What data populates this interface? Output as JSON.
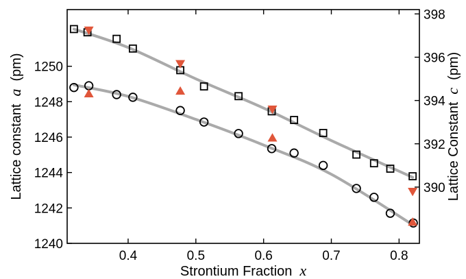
{
  "chart_data": {
    "type": "scatter",
    "title": "",
    "xlabel": "Strontium Fraction",
    "xlabel_var": "x",
    "ylabel_left": "Lattice constant",
    "ylabel_left_var": "a",
    "ylabel_left_unit": "(pm)",
    "ylabel_right": "Lattice Constant",
    "ylabel_right_var": "c",
    "ylabel_right_unit": "(pm)",
    "xlim": [
      0.31,
      0.83
    ],
    "ylim_left": [
      1240,
      1253.2
    ],
    "ylim_right": [
      387.4,
      398.2
    ],
    "xticks": [
      {
        "value": 0.4,
        "label": "0.4"
      },
      {
        "value": 0.5,
        "label": "0.5"
      },
      {
        "value": 0.6,
        "label": "0.6"
      },
      {
        "value": 0.7,
        "label": "0.7"
      },
      {
        "value": 0.8,
        "label": "0.8"
      }
    ],
    "yticks_left": [
      {
        "value": 1240,
        "label": "1240"
      },
      {
        "value": 1242,
        "label": "1242"
      },
      {
        "value": 1244,
        "label": "1244"
      },
      {
        "value": 1246,
        "label": "1246"
      },
      {
        "value": 1248,
        "label": "1248"
      },
      {
        "value": 1250,
        "label": "1250"
      }
    ],
    "yticks_right": [
      {
        "value": 390,
        "label": "390"
      },
      {
        "value": 392,
        "label": "392"
      },
      {
        "value": 394,
        "label": "394"
      },
      {
        "value": 396,
        "label": "396"
      },
      {
        "value": 398,
        "label": "398"
      }
    ],
    "grid": false,
    "colors": {
      "fit_line": "#aaaaaa",
      "triangle": "#e0563a",
      "marker": "#000000"
    },
    "series": [
      {
        "marker": "square-open",
        "axis": "right",
        "x": [
          0.32,
          0.34,
          0.383,
          0.407,
          0.477,
          0.512,
          0.563,
          0.612,
          0.645,
          0.688,
          0.737,
          0.763,
          0.787,
          0.82
        ],
        "y": [
          397.3,
          397.15,
          396.85,
          396.4,
          395.4,
          394.65,
          394.2,
          393.5,
          393.1,
          392.5,
          391.5,
          391.1,
          390.85,
          390.5
        ]
      },
      {
        "marker": "circle-open",
        "axis": "left",
        "x": [
          0.32,
          0.342,
          0.383,
          0.407,
          0.477,
          0.512,
          0.563,
          0.612,
          0.645,
          0.688,
          0.737,
          0.763,
          0.787,
          0.821
        ],
        "y": [
          1248.8,
          1248.9,
          1248.4,
          1248.25,
          1247.5,
          1246.85,
          1246.2,
          1245.35,
          1245.1,
          1244.4,
          1243.1,
          1242.6,
          1241.7,
          1241.15
        ]
      },
      {
        "marker": "triangle-down",
        "axis": "right",
        "x": [
          0.342,
          0.477,
          0.613,
          0.82
        ],
        "y": [
          397.25,
          395.7,
          393.6,
          389.8
        ]
      },
      {
        "marker": "triangle-up",
        "axis": "left",
        "x": [
          0.342,
          0.477,
          0.613,
          0.82
        ],
        "y": [
          1248.45,
          1248.6,
          1245.95,
          1241.2
        ]
      }
    ],
    "fit_lines": [
      {
        "axis": "right",
        "x": [
          0.32,
          0.4,
          0.5,
          0.6,
          0.7,
          0.82
        ],
        "y": [
          397.3,
          396.45,
          395.0,
          393.65,
          392.15,
          390.45
        ]
      },
      {
        "axis": "left",
        "x": [
          0.32,
          0.4,
          0.5,
          0.6,
          0.7,
          0.82
        ],
        "y": [
          1248.95,
          1248.3,
          1247.0,
          1245.55,
          1243.9,
          1241.05
        ]
      }
    ]
  }
}
